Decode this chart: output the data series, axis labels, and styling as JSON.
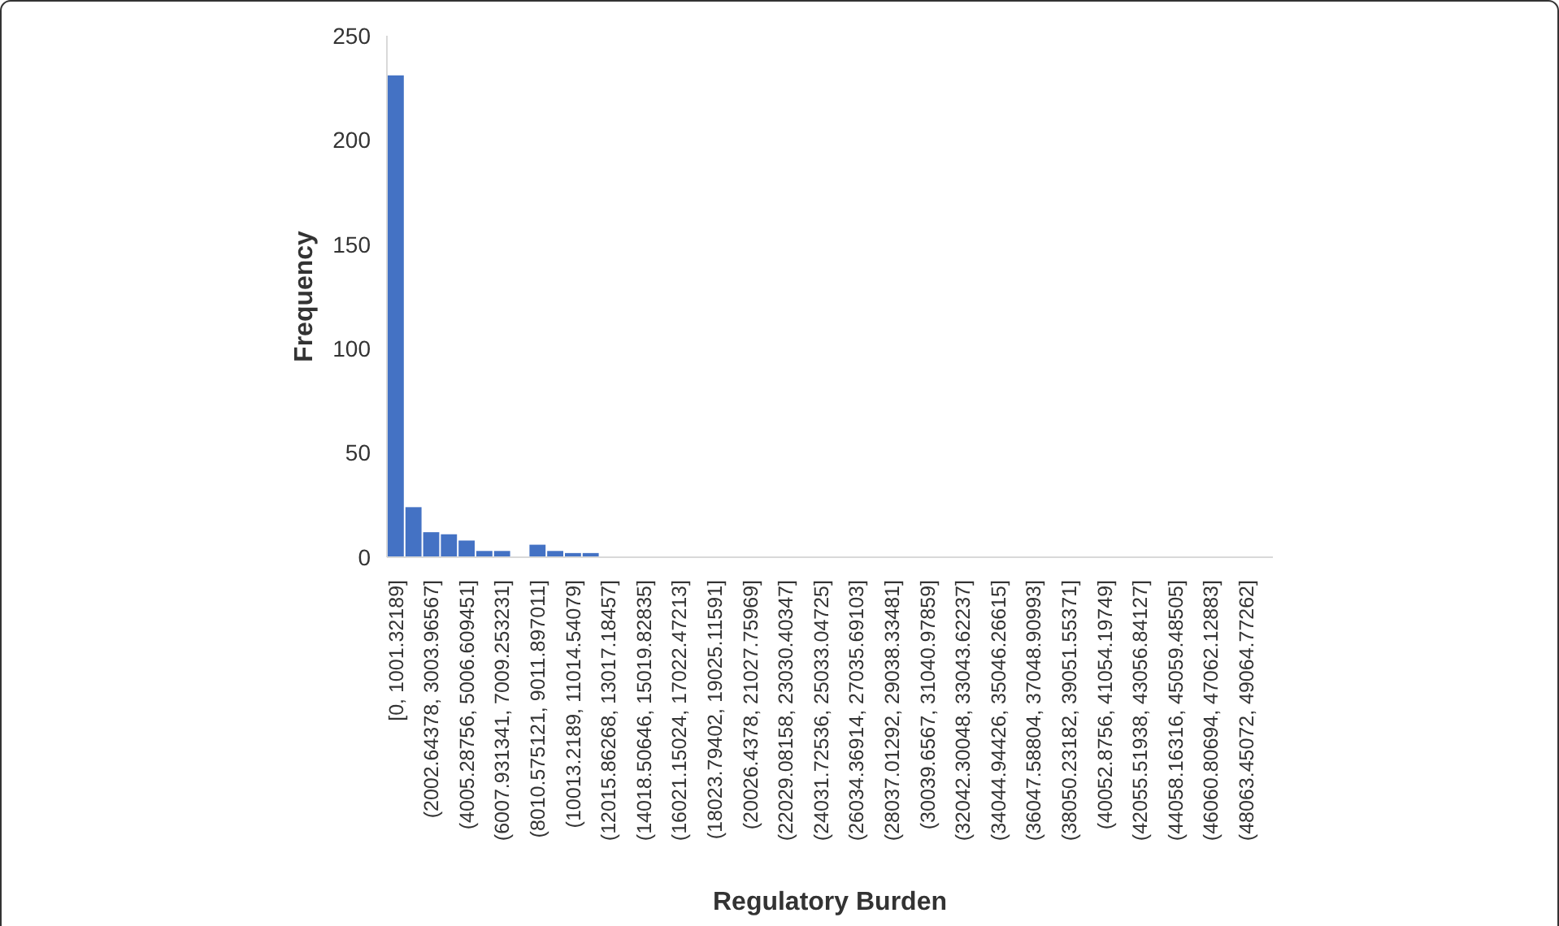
{
  "chart_data": {
    "type": "bar",
    "xlabel": "Regulatory Burden",
    "ylabel": "Frequency",
    "categories": [
      "[0, 1001.32189]",
      null,
      "(2002.64378, 3003.96567]",
      null,
      "(4005.28756, 5006.609451]",
      null,
      "(6007.931341, 7009.253231]",
      null,
      "(8010.575121, 9011.897011]",
      null,
      "(10013.2189, 11014.54079]",
      null,
      "(12015.86268, 13017.18457]",
      null,
      "(14018.50646, 15019.82835]",
      null,
      "(16021.15024, 17022.47213]",
      null,
      "(18023.79402, 19025.11591]",
      null,
      "(20026.4378, 21027.75969]",
      null,
      "(22029.08158, 23030.40347]",
      null,
      "(24031.72536, 25033.04725]",
      null,
      "(26034.36914, 27035.69103]",
      null,
      "(28037.01292, 29038.33481]",
      null,
      "(30039.6567, 31040.97859]",
      null,
      "(32042.30048, 33043.62237]",
      null,
      "(34044.94426, 35046.26615]",
      null,
      "(36047.58804, 37048.90993]",
      null,
      "(38050.23182, 39051.55371]",
      null,
      "(40052.8756, 41054.19749]",
      null,
      "(42055.51938, 43056.84127]",
      null,
      "(44058.16316, 45059.48505]",
      null,
      "(46060.80694, 47062.12883]",
      null,
      "(48063.45072, 49064.77262]",
      null
    ],
    "values": [
      231,
      24,
      12,
      11,
      8,
      3,
      3,
      0,
      6,
      3,
      2,
      2,
      0,
      0,
      0,
      0,
      0,
      0,
      0,
      0,
      0,
      0,
      0,
      0,
      0,
      0,
      0,
      0,
      0,
      0,
      0,
      0,
      0,
      0,
      0,
      0,
      0,
      0,
      0,
      0,
      0,
      0,
      0,
      0,
      0,
      0,
      0,
      0,
      0,
      0
    ],
    "color": "#4472c4",
    "ylim": [
      0,
      250
    ],
    "yticks": [
      0,
      50,
      100,
      150,
      200,
      250
    ],
    "grid": false
  }
}
